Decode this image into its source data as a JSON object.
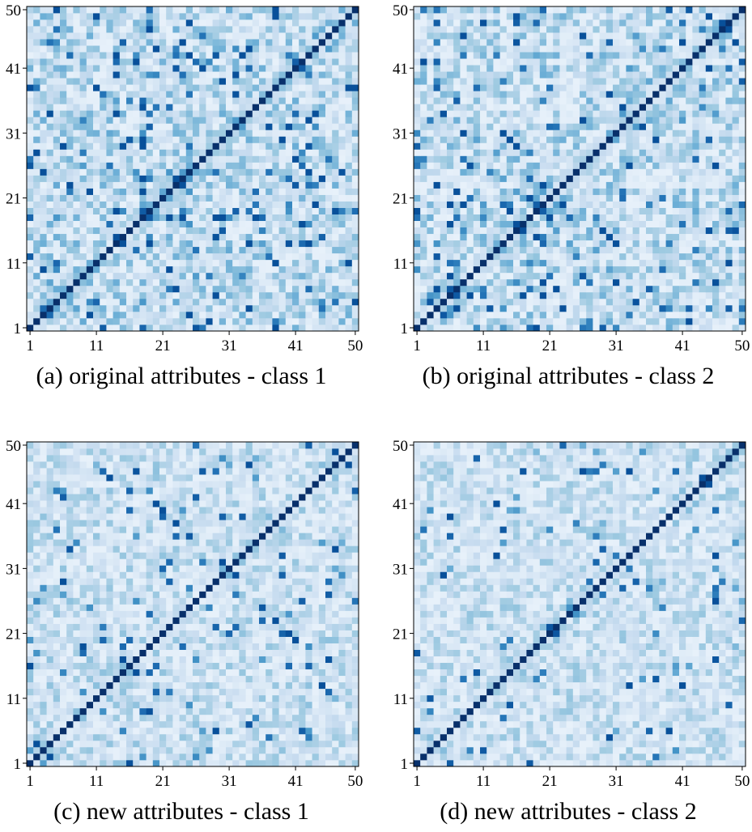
{
  "chart_data": [
    {
      "type": "heatmap",
      "caption": "(a) original attributes - class 1",
      "size": 50,
      "colormap": "Blues",
      "diagonal_value": 1.0,
      "structure_strength": 1.0,
      "seed": 11,
      "x_ticks": [
        "1",
        "11",
        "21",
        "31",
        "41",
        "50"
      ],
      "y_ticks": [
        "1",
        "11",
        "21",
        "31",
        "41",
        "50"
      ],
      "value_range": [
        0,
        1
      ]
    },
    {
      "type": "heatmap",
      "caption": "(b) original attributes - class 2",
      "size": 50,
      "colormap": "Blues",
      "diagonal_value": 1.0,
      "structure_strength": 1.0,
      "seed": 23,
      "x_ticks": [
        "1",
        "11",
        "21",
        "31",
        "41",
        "50"
      ],
      "y_ticks": [
        "1",
        "11",
        "21",
        "31",
        "41",
        "50"
      ],
      "value_range": [
        0,
        1
      ]
    },
    {
      "type": "heatmap",
      "caption": "(c) new attributes - class 1",
      "size": 50,
      "colormap": "Blues",
      "diagonal_value": 1.0,
      "structure_strength": 0.55,
      "seed": 37,
      "x_ticks": [
        "1",
        "11",
        "21",
        "31",
        "41",
        "50"
      ],
      "y_ticks": [
        "1",
        "11",
        "21",
        "31",
        "41",
        "50"
      ],
      "value_range": [
        0,
        1
      ]
    },
    {
      "type": "heatmap",
      "caption": "(d) new attributes - class 2",
      "size": 50,
      "colormap": "Blues",
      "diagonal_value": 1.0,
      "structure_strength": 0.5,
      "seed": 53,
      "x_ticks": [
        "1",
        "11",
        "21",
        "31",
        "41",
        "50"
      ],
      "y_ticks": [
        "1",
        "11",
        "21",
        "31",
        "41",
        "50"
      ],
      "value_range": [
        0,
        1
      ]
    }
  ]
}
